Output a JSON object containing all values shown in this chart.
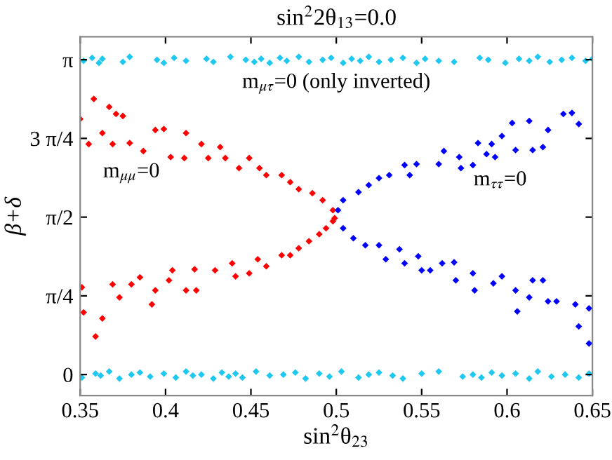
{
  "chart_data": {
    "type": "scatter",
    "title": "sin$^{2}$2θ$_{13}$=0.0",
    "xlabel": "sin$^{2}$θ$_{23}$",
    "ylabel": "β+δ",
    "xlim": [
      0.35,
      0.65
    ],
    "ylim": [
      -0.21,
      3.37
    ],
    "xticks": [
      0.35,
      0.4,
      0.45,
      0.5,
      0.55,
      0.6,
      0.65
    ],
    "yticks": [
      {
        "value": 0,
        "label": "0"
      },
      {
        "value": 0.7854,
        "label": "π/4"
      },
      {
        "value": 1.5708,
        "label": "π/2"
      },
      {
        "value": 2.3562,
        "label": "3 π/4"
      },
      {
        "value": 3.1416,
        "label": "π"
      }
    ],
    "grid": false,
    "legend": false,
    "marker": "diamond",
    "annotations": [
      "m$_{μτ}$=0 (only inverted)",
      "m$_{μμ}$=0",
      "m$_{ττ}$=0"
    ],
    "series": [
      {
        "color": "#1ec8f0",
        "x": [
          0.352,
          0.357,
          0.361,
          0.363,
          0.375,
          0.379,
          0.395,
          0.399,
          0.405,
          0.412,
          0.424,
          0.428,
          0.438,
          0.447,
          0.452,
          0.456,
          0.461,
          0.467,
          0.471,
          0.478,
          0.484,
          0.492,
          0.497,
          0.504,
          0.509,
          0.514,
          0.519,
          0.525,
          0.532,
          0.539,
          0.547,
          0.552,
          0.56,
          0.569,
          0.584,
          0.589,
          0.599,
          0.607,
          0.613,
          0.618,
          0.625,
          0.632,
          0.638,
          0.646,
          0.65
        ],
        "values": [
          3.13,
          3.16,
          3.11,
          3.15,
          3.12,
          3.17,
          3.14,
          3.11,
          3.16,
          3.13,
          3.15,
          3.12,
          3.17,
          3.14,
          3.12,
          3.15,
          3.11,
          3.16,
          3.13,
          3.17,
          3.12,
          3.14,
          3.16,
          3.11,
          3.15,
          3.13,
          3.17,
          3.12,
          3.14,
          3.16,
          3.11,
          3.15,
          3.13,
          3.12,
          3.16,
          3.14,
          3.11,
          3.15,
          3.13,
          3.17,
          3.12,
          3.14,
          3.16,
          3.13,
          3.15
        ]
      },
      {
        "color": "#1ec8f0",
        "x": [
          0.351,
          0.359,
          0.362,
          0.367,
          0.373,
          0.38,
          0.385,
          0.391,
          0.399,
          0.406,
          0.412,
          0.416,
          0.421,
          0.428,
          0.433,
          0.437,
          0.441,
          0.445,
          0.453,
          0.461,
          0.469,
          0.476,
          0.482,
          0.49,
          0.496,
          0.503,
          0.513,
          0.519,
          0.525,
          0.533,
          0.539,
          0.55,
          0.56,
          0.574,
          0.58,
          0.585,
          0.591,
          0.597,
          0.605,
          0.613,
          0.618,
          0.626,
          0.634,
          0.642,
          0.648
        ],
        "values": [
          -0.03,
          0.01,
          -0.01,
          0.03,
          -0.04,
          0.0,
          0.02,
          -0.02,
          0.01,
          -0.03,
          0.03,
          -0.01,
          0.0,
          -0.04,
          0.02,
          -0.02,
          0.01,
          -0.03,
          0.03,
          -0.01,
          0.0,
          0.02,
          -0.04,
          0.01,
          -0.02,
          0.03,
          -0.03,
          0.0,
          0.02,
          -0.01,
          -0.04,
          0.01,
          0.03,
          -0.02,
          0.0,
          -0.03,
          0.02,
          -0.01,
          0.01,
          -0.04,
          0.03,
          -0.02,
          0.0,
          -0.03,
          0.01
        ]
      },
      {
        "color": "#ff0000",
        "x": [
          0.35,
          0.358,
          0.367,
          0.371,
          0.375,
          0.355,
          0.363,
          0.369,
          0.379,
          0.394,
          0.399,
          0.387,
          0.403,
          0.412,
          0.411,
          0.421,
          0.425,
          0.432,
          0.435,
          0.443,
          0.449,
          0.455,
          0.459,
          0.468,
          0.473,
          0.478,
          0.486,
          0.492,
          0.498,
          0.499,
          0.351,
          0.352,
          0.359,
          0.363,
          0.369,
          0.373,
          0.38,
          0.385,
          0.392,
          0.394,
          0.402,
          0.404,
          0.412,
          0.417,
          0.418,
          0.429,
          0.439,
          0.441,
          0.449,
          0.454,
          0.459,
          0.468,
          0.473,
          0.478,
          0.484,
          0.49,
          0.494,
          0.498
        ],
        "values": [
          2.55,
          2.75,
          2.67,
          2.6,
          2.58,
          2.3,
          2.41,
          2.3,
          2.31,
          2.44,
          2.45,
          2.23,
          2.17,
          2.41,
          2.16,
          2.3,
          2.16,
          2.27,
          2.16,
          2.06,
          2.16,
          2.06,
          1.99,
          1.99,
          1.92,
          1.85,
          1.81,
          1.74,
          1.64,
          1.56,
          0.87,
          0.62,
          0.38,
          0.56,
          0.9,
          0.77,
          0.9,
          0.97,
          0.7,
          0.84,
          0.94,
          1.04,
          0.84,
          1.05,
          0.84,
          1.04,
          1.11,
          0.98,
          1.01,
          1.15,
          1.08,
          1.19,
          1.19,
          1.26,
          1.33,
          1.4,
          1.46,
          1.53
        ]
      },
      {
        "color": "#0000ff",
        "x": [
          0.501,
          0.504,
          0.513,
          0.519,
          0.525,
          0.531,
          0.54,
          0.543,
          0.547,
          0.56,
          0.563,
          0.572,
          0.573,
          0.58,
          0.583,
          0.588,
          0.591,
          0.593,
          0.597,
          0.603,
          0.605,
          0.613,
          0.615,
          0.621,
          0.624,
          0.633,
          0.638,
          0.642,
          0.504,
          0.51,
          0.517,
          0.525,
          0.529,
          0.537,
          0.54,
          0.548,
          0.55,
          0.555,
          0.562,
          0.569,
          0.57,
          0.58,
          0.581,
          0.592,
          0.597,
          0.605,
          0.606,
          0.613,
          0.615,
          0.621,
          0.624,
          0.629,
          0.64,
          0.642,
          0.648,
          0.648
        ],
        "values": [
          1.64,
          1.74,
          1.82,
          1.89,
          1.96,
          1.99,
          2.09,
          1.99,
          2.1,
          2.1,
          2.23,
          2.17,
          2.06,
          2.09,
          2.31,
          2.2,
          2.3,
          2.17,
          2.38,
          2.51,
          2.24,
          2.53,
          2.24,
          2.27,
          2.44,
          2.6,
          2.61,
          2.5,
          1.46,
          1.36,
          1.29,
          1.29,
          1.15,
          1.25,
          1.11,
          1.18,
          1.04,
          1.04,
          1.11,
          1.12,
          0.94,
          1.01,
          0.84,
          0.91,
          0.98,
          0.84,
          0.63,
          0.77,
          0.94,
          0.94,
          0.73,
          0.73,
          0.7,
          0.48,
          0.66,
          0.31
        ]
      }
    ]
  }
}
